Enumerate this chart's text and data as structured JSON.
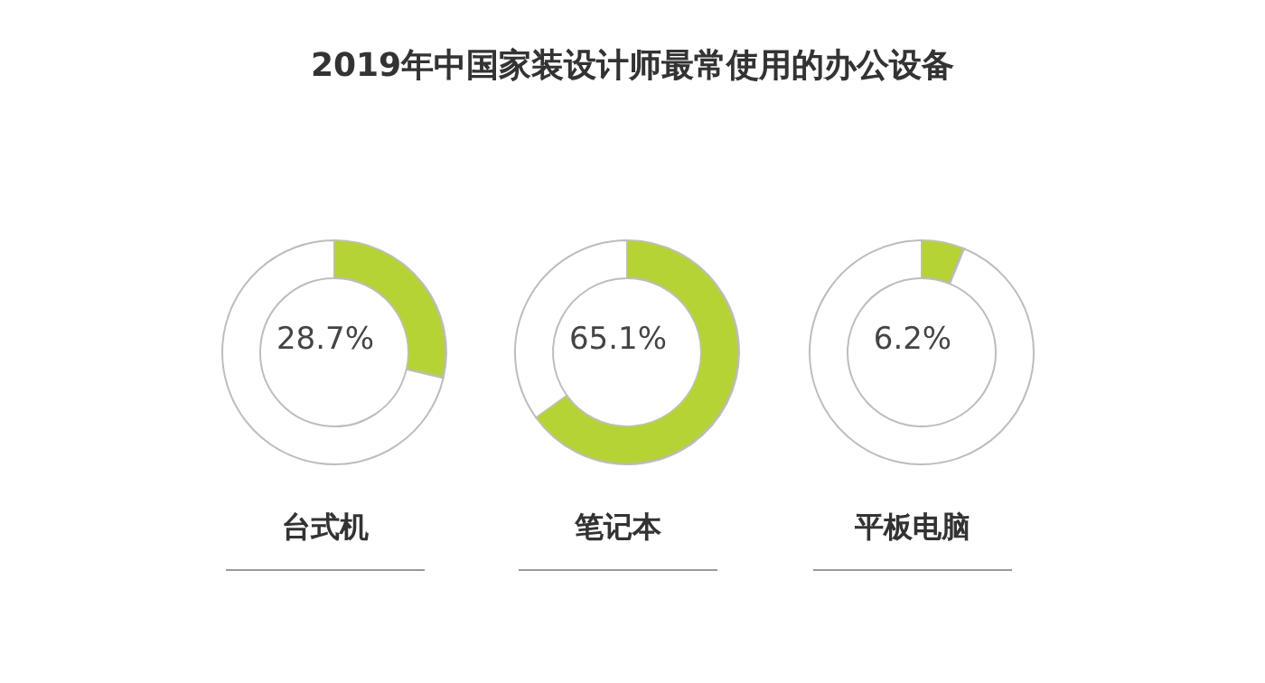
{
  "chart_data": [
    {
      "type": "donut",
      "title": "2019年中国家装设计师最常使用的办公设备",
      "xlabel": "台式机",
      "categories": [
        null,
        null
      ],
      "values": [
        28.7,
        71.3
      ],
      "colors": [
        "#b5d334",
        "#ffffff"
      ],
      "annotations": [
        "28.7%"
      ]
    },
    {
      "type": "donut",
      "xlabel": "笔记本",
      "categories": [
        null,
        null
      ],
      "values": [
        65.1,
        34.9
      ],
      "colors": [
        "#b5d334",
        "#ffffff"
      ],
      "annotations": [
        "65.1%"
      ]
    },
    {
      "type": "donut",
      "xlabel": "平板电脑",
      "categories": [
        null,
        null
      ],
      "values": [
        6.2,
        93.8
      ],
      "colors": [
        "#b5d334",
        "#ffffff"
      ],
      "annotations": [
        "6.2%"
      ]
    }
  ]
}
